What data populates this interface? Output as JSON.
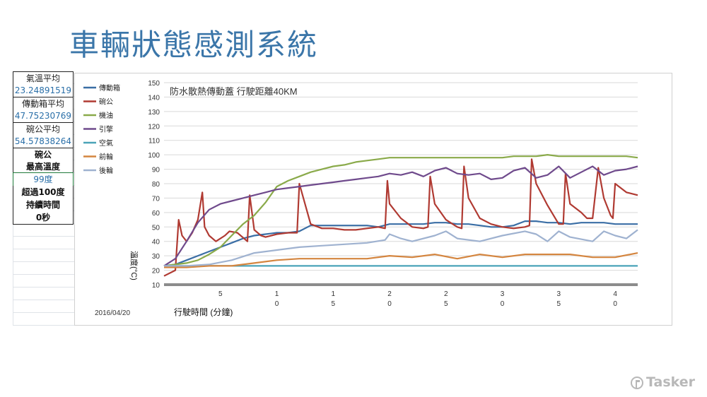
{
  "slide": {
    "title": "車輛狀態感測系統"
  },
  "sheet": {
    "cells": [
      {
        "label": "氣溫平均",
        "value": "23.24891519"
      },
      {
        "label": "傳動箱平均",
        "value": "47.75230769"
      },
      {
        "label": "碗公平均",
        "value": "54.57838264"
      }
    ],
    "max_temp_line1": "碗公",
    "max_temp_line2": "最高溫度",
    "max_temp_value": "99度",
    "over_line1": "超過100度",
    "over_line2": "持續時間",
    "over_value": "0秒"
  },
  "logo": {
    "text": "Tasker",
    "icon": "tasker-logo-icon"
  },
  "chart_data": {
    "type": "line",
    "title": "防水散熱傳動蓋 行駛距離40KM",
    "xlabel": "行駛時間 (分鐘)",
    "ylabel": "溫度(°C)",
    "date_label": "2016/04/20",
    "ylim": [
      10,
      150
    ],
    "yticks": [
      10,
      20,
      30,
      40,
      50,
      60,
      70,
      80,
      90,
      100,
      110,
      120,
      130,
      140,
      150
    ],
    "xlim": [
      0,
      42
    ],
    "xtick_labels": [
      {
        "x": 5,
        "line1": "5",
        "line2": ""
      },
      {
        "x": 10,
        "line1": "1",
        "line2": "0"
      },
      {
        "x": 15,
        "line1": "1",
        "line2": "5"
      },
      {
        "x": 20,
        "line1": "2",
        "line2": "0"
      },
      {
        "x": 25,
        "line1": "2",
        "line2": "5"
      },
      {
        "x": 30,
        "line1": "3",
        "line2": "0"
      },
      {
        "x": 35,
        "line1": "3",
        "line2": "5"
      },
      {
        "x": 40,
        "line1": "4",
        "line2": "0"
      }
    ],
    "grid": true,
    "legend_position": "left",
    "series": [
      {
        "name": "傳動箱",
        "color": "#3a6ea5",
        "x": [
          0,
          1,
          2,
          3,
          4,
          5,
          6,
          7,
          8,
          9,
          10,
          11,
          12,
          13,
          14,
          15,
          16,
          17,
          18,
          19,
          20,
          21,
          22,
          23,
          24,
          25,
          26,
          27,
          28,
          29,
          30,
          31,
          32,
          33,
          34,
          35,
          36,
          37,
          38,
          39,
          40,
          41,
          42
        ],
        "y": [
          23,
          24,
          27,
          30,
          33,
          36,
          39,
          42,
          44,
          45,
          46,
          46,
          47,
          51,
          51,
          51,
          51,
          51,
          51,
          50,
          52,
          52,
          52,
          52,
          53,
          53,
          52,
          52,
          51,
          50,
          50,
          51,
          54,
          54,
          53,
          53,
          52,
          53,
          53,
          53,
          52,
          52,
          52
        ]
      },
      {
        "name": "碗公",
        "color": "#b03a32",
        "x": [
          0,
          1,
          1.3,
          1.6,
          2,
          2.5,
          3,
          3.4,
          3.6,
          4,
          4.6,
          5,
          5.4,
          5.8,
          6.5,
          7.4,
          7.6,
          8,
          8.6,
          9,
          10,
          11,
          11.6,
          11.8,
          12,
          13,
          14,
          15,
          16,
          17,
          18,
          19,
          19.6,
          19.8,
          20,
          21,
          22,
          23,
          23.4,
          23.6,
          24,
          25,
          26,
          26.4,
          26.6,
          27,
          28,
          29,
          30,
          31,
          32,
          32.4,
          32.6,
          33,
          34,
          35,
          35.4,
          35.6,
          36,
          37,
          37.5,
          38,
          38.5,
          39,
          39.6,
          39.8,
          40,
          41,
          42
        ],
        "y": [
          16,
          20,
          55,
          44,
          40,
          46,
          55,
          74,
          50,
          44,
          40,
          42,
          44,
          47,
          46,
          40,
          72,
          48,
          44,
          43,
          45,
          46,
          46,
          46,
          80,
          52,
          49,
          49,
          48,
          48,
          49,
          50,
          49,
          82,
          66,
          56,
          50,
          49,
          50,
          85,
          66,
          55,
          50,
          49,
          92,
          70,
          56,
          52,
          50,
          49,
          50,
          51,
          97,
          80,
          65,
          52,
          52,
          87,
          66,
          60,
          56,
          56,
          91,
          70,
          58,
          56,
          80,
          74,
          72
        ]
      },
      {
        "name": "機油",
        "color": "#8aaa4a",
        "x": [
          0,
          1,
          2,
          3,
          4,
          5,
          6,
          7,
          8,
          9,
          10,
          11,
          12,
          13,
          14,
          15,
          16,
          17,
          18,
          19,
          20,
          21,
          22,
          23,
          24,
          25,
          26,
          27,
          28,
          29,
          30,
          31,
          32,
          33,
          34,
          35,
          36,
          37,
          38,
          39,
          40,
          41,
          42
        ],
        "y": [
          23,
          24,
          25,
          27,
          31,
          36,
          44,
          52,
          58,
          67,
          78,
          82,
          85,
          88,
          90,
          92,
          93,
          95,
          96,
          97,
          98,
          98,
          98,
          98,
          98,
          98,
          98,
          98,
          98,
          98,
          98,
          99,
          99,
          99,
          100,
          99,
          99,
          99,
          99,
          99,
          99,
          99,
          98
        ]
      },
      {
        "name": "引擎",
        "color": "#6f4a8c",
        "x": [
          0,
          1,
          2,
          3,
          4,
          5,
          6,
          7,
          8,
          9,
          10,
          11,
          12,
          13,
          14,
          15,
          16,
          17,
          18,
          19,
          20,
          21,
          22,
          23,
          24,
          25,
          26,
          27,
          28,
          29,
          30,
          31,
          32,
          33,
          34,
          35,
          36,
          37,
          38,
          39,
          40,
          41,
          42
        ],
        "y": [
          23,
          28,
          40,
          53,
          62,
          66,
          68,
          70,
          72,
          74,
          76,
          77,
          78,
          79,
          80,
          81,
          82,
          83,
          84,
          85,
          87,
          86,
          88,
          85,
          89,
          91,
          87,
          86,
          87,
          83,
          84,
          89,
          91,
          84,
          86,
          92,
          84,
          88,
          92,
          86,
          89,
          90,
          92
        ]
      },
      {
        "name": "空氣",
        "color": "#4aa3b8",
        "x": [
          0,
          2,
          4,
          6,
          8,
          10,
          12,
          14,
          16,
          18,
          20,
          22,
          24,
          26,
          28,
          30,
          32,
          34,
          36,
          38,
          40,
          42
        ],
        "y": [
          23,
          23,
          23,
          23,
          23,
          23,
          23,
          23,
          23,
          23,
          23,
          23,
          23,
          23,
          23,
          23,
          23,
          23,
          23,
          23,
          23,
          23
        ]
      },
      {
        "name": "前輪",
        "color": "#d4853f",
        "x": [
          0,
          2,
          4,
          6,
          8,
          10,
          12,
          14,
          16,
          18,
          20,
          22,
          24,
          26,
          28,
          30,
          32,
          34,
          36,
          38,
          40,
          42
        ],
        "y": [
          22,
          22,
          23,
          23,
          25,
          27,
          28,
          28,
          28,
          28,
          30,
          29,
          31,
          28,
          31,
          29,
          31,
          31,
          31,
          29,
          29,
          32
        ]
      },
      {
        "name": "後輪",
        "color": "#9fb2d0",
        "x": [
          0,
          2,
          4,
          6,
          8,
          10,
          12,
          14,
          16,
          18,
          19.6,
          20,
          21,
          22,
          24,
          25,
          26,
          28,
          30,
          32,
          33,
          34,
          35,
          36,
          38,
          39,
          40,
          41,
          42
        ],
        "y": [
          23,
          23,
          24,
          27,
          32,
          34,
          36,
          37,
          38,
          39,
          41,
          45,
          42,
          40,
          44,
          47,
          42,
          40,
          44,
          47,
          45,
          40,
          47,
          43,
          40,
          47,
          44,
          42,
          48
        ]
      }
    ]
  }
}
